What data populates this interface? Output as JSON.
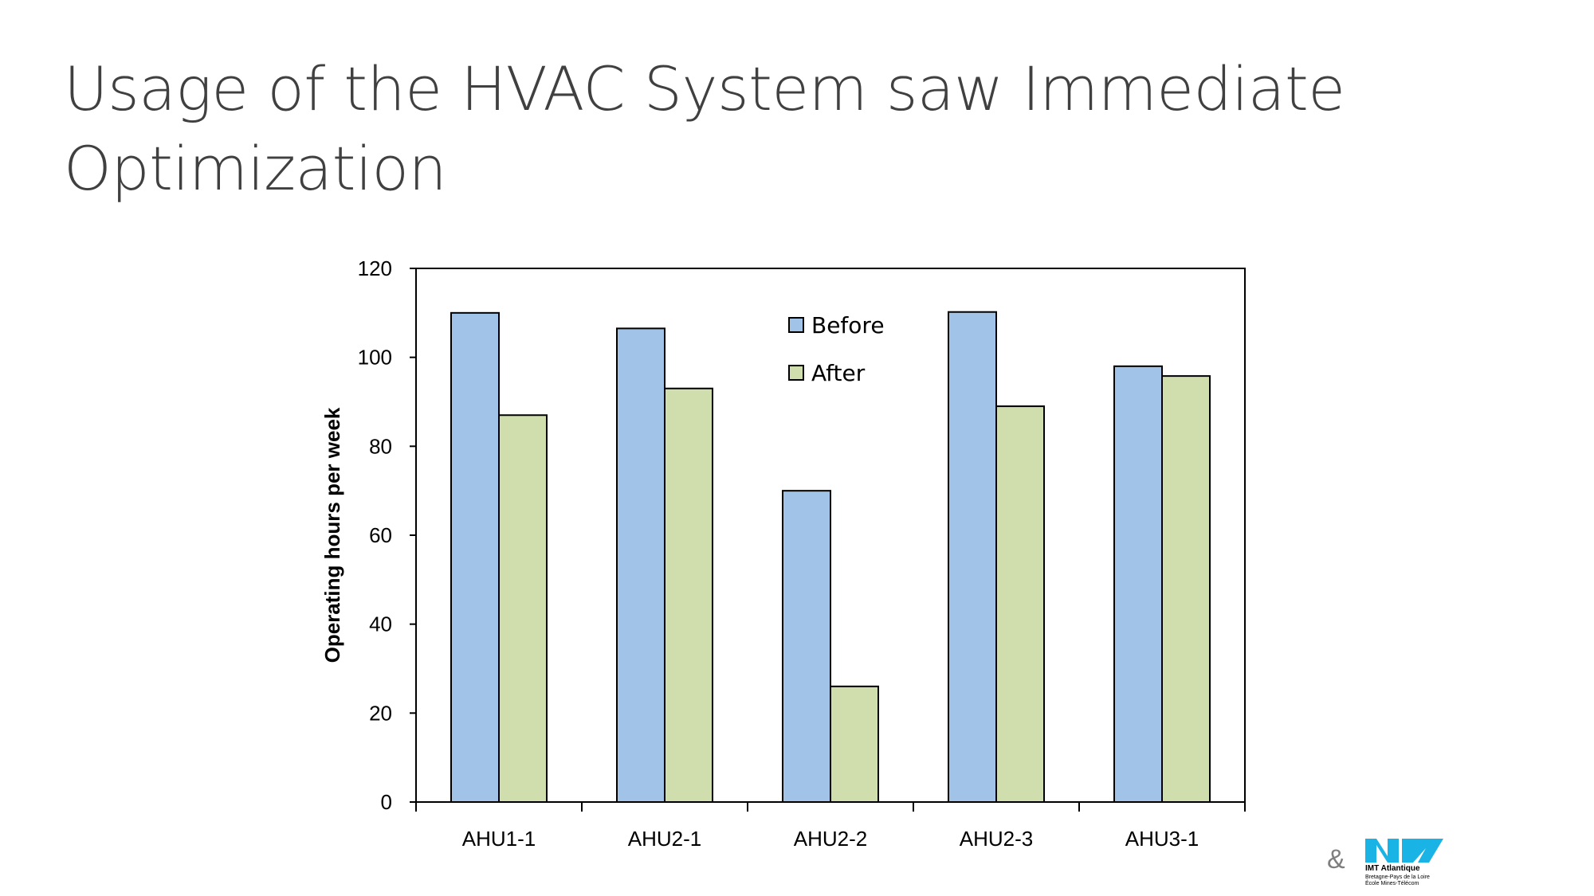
{
  "slide": {
    "title": "Usage of the HVAC System saw Immediate Optimization"
  },
  "chart_data": {
    "type": "bar",
    "title": "",
    "xlabel": "",
    "ylabel": "Operating hours per week",
    "categories": [
      "AHU1-1",
      "AHU2-1",
      "AHU2-2",
      "AHU2-3",
      "AHU3-1"
    ],
    "series": [
      {
        "name": "Before",
        "values": [
          110,
          106.5,
          70,
          110.2,
          98
        ],
        "color": "#a2c3e8"
      },
      {
        "name": "After",
        "values": [
          87,
          93,
          26,
          89,
          95.8
        ],
        "color": "#d0ddad"
      }
    ],
    "ylim": [
      0,
      120
    ],
    "yticks": [
      0,
      20,
      40,
      60,
      80,
      100,
      120
    ],
    "grid": false,
    "legend_position": "top-center",
    "axis_color": "#000000"
  },
  "footer": {
    "ampersand": "&",
    "logo_name": "IMT Atlantique",
    "logo_line1": "Bretagne-Pays de la Loire",
    "logo_line2": "École Mines-Télécom",
    "logo_color": "#1ab3e6"
  }
}
